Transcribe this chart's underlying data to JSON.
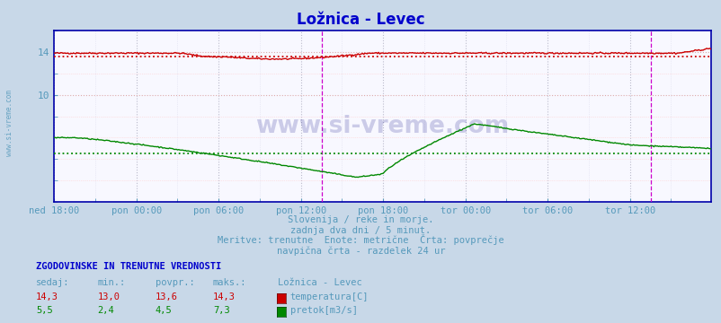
{
  "title": "Ložnica - Levec",
  "fig_bg_color": "#c8d8e8",
  "plot_bg_color": "#f8f8ff",
  "title_color": "#0000cc",
  "temp_color": "#cc0000",
  "flow_color": "#008800",
  "avg_temp_color": "#cc0000",
  "avg_flow_color": "#008800",
  "vline_color": "#cc00cc",
  "tick_label_color": "#5599bb",
  "subtitle_color": "#5599bb",
  "footer_bold_color": "#0000cc",
  "footer_color": "#5599bb",
  "axis_color": "#0000aa",
  "ymin": 0,
  "ymax": 16,
  "num_points": 576,
  "temp_avg": 13.6,
  "flow_avg": 4.5,
  "tick_positions": [
    0,
    72,
    144,
    216,
    288,
    360,
    432,
    504
  ],
  "tick_labels": [
    "ned 18:00",
    "pon 00:00",
    "pon 06:00",
    "pon 12:00",
    "pon 18:00",
    "tor 00:00",
    "tor 06:00",
    "tor 12:00"
  ],
  "vline_positions": [
    234,
    522
  ],
  "subtitle1": "Slovenija / reke in morje.",
  "subtitle2": "zadnja dva dni / 5 minut.",
  "subtitle3": "Meritve: trenutne  Enote: metrične  Črta: povprečje",
  "subtitle4": "navpična črta - razdelek 24 ur",
  "footer_title": "ZGODOVINSKE IN TRENUTNE VREDNOSTI",
  "col_headers": [
    "sedaj:",
    "min.:",
    "povpr.:",
    "maks.:",
    "Ložnica - Levec"
  ],
  "row1_vals": [
    "14,3",
    "13,0",
    "13,6",
    "14,3"
  ],
  "row1_label": "temperatura[C]",
  "row1_color": "#cc0000",
  "row2_vals": [
    "5,5",
    "2,4",
    "4,5",
    "7,3"
  ],
  "row2_label": "pretok[m3/s]",
  "row2_color": "#008800",
  "watermark": "www.si-vreme.com",
  "left_watermark": "www.si-vreme.com"
}
